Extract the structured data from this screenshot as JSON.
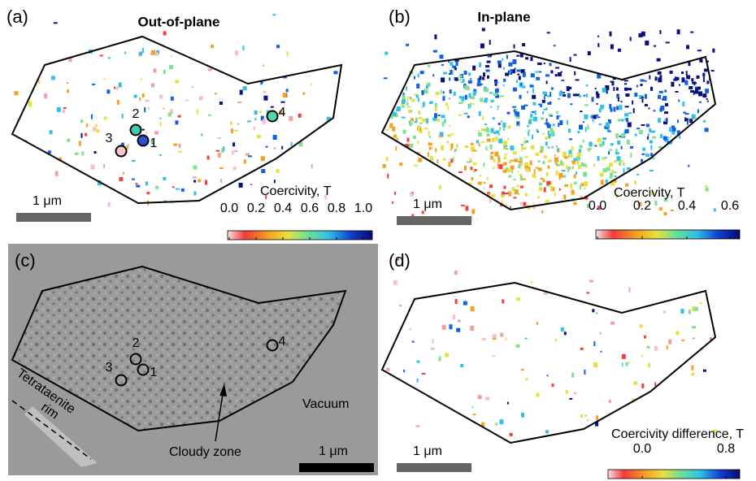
{
  "panels": [
    {
      "label": "(a)",
      "title": "Out-of-plane",
      "scale_bar": "1 μm",
      "colorbar": {
        "label": "Coercivity, T",
        "ticks": [
          "0.0",
          "0.2",
          "0.4",
          "0.6",
          "0.8",
          "1.0"
        ]
      },
      "markers": [
        "1",
        "2",
        "3",
        "4"
      ]
    },
    {
      "label": "(b)",
      "title": "In-plane",
      "scale_bar": "1 μm",
      "colorbar": {
        "label": "Coercivity, T",
        "ticks": [
          "0.0",
          "0.2",
          "0.4",
          "0.6"
        ]
      }
    },
    {
      "label": "(c)",
      "scale_bar": "1 μm",
      "markers": [
        "1",
        "2",
        "3",
        "4"
      ],
      "annotations": [
        "Tetrataenite",
        "rim",
        "Vacuum",
        "Cloudy zone"
      ]
    },
    {
      "label": "(d)",
      "scale_bar": "1 μm",
      "colorbar": {
        "label": "Coercivity difference, T",
        "ticks": [
          "0.0",
          "0.8"
        ]
      }
    }
  ]
}
